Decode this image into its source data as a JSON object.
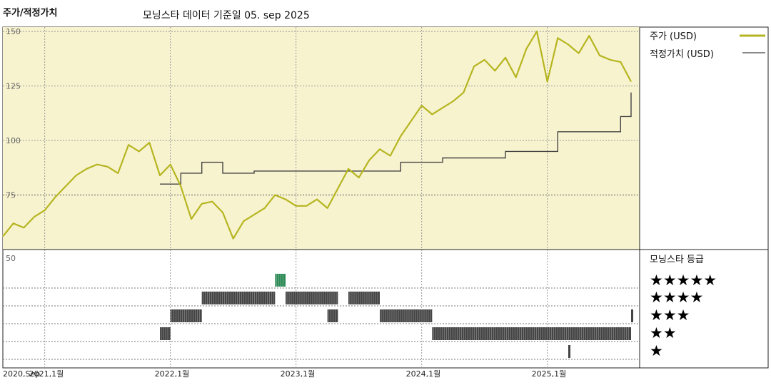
{
  "header": {
    "left_title": "주가/적정가치",
    "main_title": "모닝스타 데이터 기준일 05. sep 2025"
  },
  "legend": {
    "price_label": "주가 (USD)",
    "fair_label": "적정가치 (USD)",
    "rating_title": "모닝스타 등급",
    "stars": [
      "★★★★★",
      "★★★★",
      "★★★",
      "★★",
      "★"
    ]
  },
  "colors": {
    "price": "#b5b520",
    "fair": "#444444",
    "plot_bg": "#f8f3cf",
    "rating_bar": "#444444",
    "rating_bar_5": "#2e8b57"
  },
  "chart_data": [
    {
      "type": "line",
      "ylim": [
        50,
        152
      ],
      "yticks": [
        150,
        125,
        100,
        75
      ],
      "x_ticks": [
        "2020,Sep",
        "2021,1월",
        "2022,1월",
        "2023,1월",
        "2024,1월",
        "2025,1월"
      ],
      "x_tick_dates": [
        "2020-09",
        "2021-01",
        "2022-01",
        "2023-01",
        "2024-01",
        "2025-01"
      ],
      "x_range": [
        "2020-09",
        "2025-09"
      ],
      "series": [
        {
          "name": "주가 (USD)",
          "x": [
            "2020-09",
            "2020-10",
            "2020-11",
            "2020-12",
            "2021-01",
            "2021-02",
            "2021-03",
            "2021-04",
            "2021-05",
            "2021-06",
            "2021-07",
            "2021-08",
            "2021-09",
            "2021-10",
            "2021-11",
            "2021-12",
            "2022-01",
            "2022-02",
            "2022-03",
            "2022-04",
            "2022-05",
            "2022-06",
            "2022-07",
            "2022-08",
            "2022-09",
            "2022-10",
            "2022-11",
            "2022-12",
            "2023-01",
            "2023-02",
            "2023-03",
            "2023-04",
            "2023-05",
            "2023-06",
            "2023-07",
            "2023-08",
            "2023-09",
            "2023-10",
            "2023-11",
            "2023-12",
            "2024-01",
            "2024-02",
            "2024-03",
            "2024-04",
            "2024-05",
            "2024-06",
            "2024-07",
            "2024-08",
            "2024-09",
            "2024-10",
            "2024-11",
            "2024-12",
            "2025-01",
            "2025-02",
            "2025-03",
            "2025-04",
            "2025-05",
            "2025-06",
            "2025-07",
            "2025-08",
            "2025-09"
          ],
          "values": [
            56,
            62,
            60,
            65,
            68,
            74,
            79,
            84,
            87,
            89,
            88,
            85,
            98,
            95,
            99,
            84,
            89,
            79,
            64,
            71,
            72,
            67,
            55,
            63,
            66,
            69,
            75,
            73,
            70,
            70,
            73,
            69,
            78,
            87,
            83,
            91,
            96,
            93,
            102,
            109,
            116,
            112,
            115,
            118,
            122,
            134,
            137,
            132,
            138,
            129,
            142,
            150,
            127,
            147,
            144,
            140,
            148,
            139,
            137,
            136,
            127
          ]
        },
        {
          "name": "적정가치 (USD)",
          "x": [
            "2021-12",
            "2022-02",
            "2022-04",
            "2022-06",
            "2022-09",
            "2023-09",
            "2023-11",
            "2024-03",
            "2024-09",
            "2025-02",
            "2025-08",
            "2025-09"
          ],
          "values": [
            80,
            85,
            90,
            85,
            86,
            86,
            90,
            92,
            95,
            104,
            111,
            122
          ]
        }
      ]
    },
    {
      "type": "table",
      "title": "모닝스타 등급",
      "rating_periods": [
        {
          "stars": 2,
          "start": "2021-12",
          "end": "2022-01"
        },
        {
          "stars": 3,
          "start": "2022-01",
          "end": "2022-04"
        },
        {
          "stars": 4,
          "start": "2022-04",
          "end": "2022-11"
        },
        {
          "stars": 5,
          "start": "2022-11",
          "end": "2022-12"
        },
        {
          "stars": 4,
          "start": "2022-12",
          "end": "2023-05"
        },
        {
          "stars": 3,
          "start": "2023-04",
          "end": "2023-05"
        },
        {
          "stars": 4,
          "start": "2023-06",
          "end": "2023-09"
        },
        {
          "stars": 3,
          "start": "2023-09",
          "end": "2024-02"
        },
        {
          "stars": 2,
          "start": "2024-02",
          "end": "2025-09"
        },
        {
          "stars": 1,
          "start": "2025-03",
          "end": "2025-03"
        },
        {
          "stars": 3,
          "start": "2025-09",
          "end": "2025-09"
        }
      ]
    }
  ]
}
